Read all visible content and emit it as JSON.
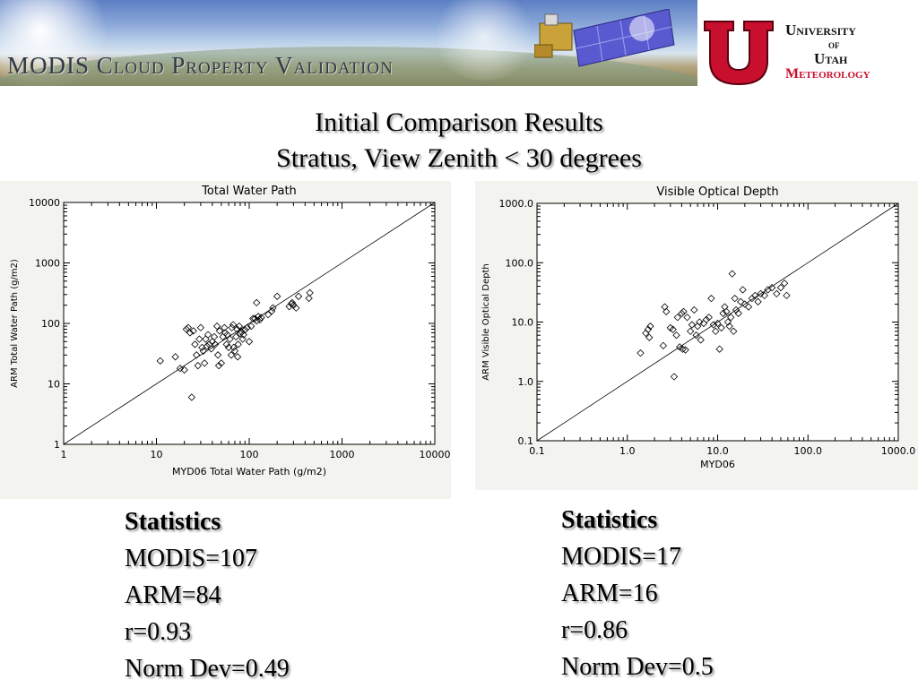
{
  "banner": {
    "title": "MODIS Cloud Property Validation"
  },
  "logo": {
    "line1": "University",
    "line2": "of",
    "line3": "Utah",
    "line4": "Meteorology"
  },
  "slide": {
    "title_line1": "Initial Comparison Results",
    "title_line2": "Stratus, View Zenith < 30 degrees"
  },
  "chart_data": [
    {
      "type": "scatter",
      "title": "Total Water Path",
      "xlabel": "MYD06 Total Water Path (g/m2)",
      "ylabel": "ARM Total Water Path (g/m2)",
      "xscale": "log",
      "yscale": "log",
      "xlim": [
        1,
        10000
      ],
      "ylim": [
        1,
        10000
      ],
      "xticks": [
        "1",
        "10",
        "100",
        "1000",
        "10000"
      ],
      "yticks": [
        "1",
        "10",
        "100",
        "1000",
        "10000"
      ],
      "reference_line": "1:1",
      "marker": "diamond",
      "points": [
        [
          11,
          24
        ],
        [
          16,
          28
        ],
        [
          18,
          18
        ],
        [
          20,
          17
        ],
        [
          21,
          80
        ],
        [
          22,
          85
        ],
        [
          23,
          70
        ],
        [
          24,
          6
        ],
        [
          25,
          75
        ],
        [
          26,
          45
        ],
        [
          27,
          30
        ],
        [
          28,
          20
        ],
        [
          29,
          55
        ],
        [
          30,
          85
        ],
        [
          31,
          40
        ],
        [
          32,
          35
        ],
        [
          33,
          22
        ],
        [
          34,
          55
        ],
        [
          35,
          42
        ],
        [
          36,
          65
        ],
        [
          37,
          45
        ],
        [
          39,
          38
        ],
        [
          40,
          50
        ],
        [
          42,
          60
        ],
        [
          43,
          45
        ],
        [
          45,
          90
        ],
        [
          46,
          30
        ],
        [
          47,
          20
        ],
        [
          48,
          75
        ],
        [
          50,
          22
        ],
        [
          52,
          60
        ],
        [
          54,
          85
        ],
        [
          55,
          70
        ],
        [
          57,
          45
        ],
        [
          58,
          65
        ],
        [
          60,
          40
        ],
        [
          62,
          55
        ],
        [
          64,
          30
        ],
        [
          65,
          85
        ],
        [
          67,
          95
        ],
        [
          68,
          40
        ],
        [
          70,
          35
        ],
        [
          72,
          60
        ],
        [
          74,
          80
        ],
        [
          75,
          28
        ],
        [
          76,
          45
        ],
        [
          78,
          90
        ],
        [
          80,
          68
        ],
        [
          83,
          72
        ],
        [
          85,
          55
        ],
        [
          87,
          65
        ],
        [
          90,
          78
        ],
        [
          95,
          85
        ],
        [
          100,
          50
        ],
        [
          105,
          90
        ],
        [
          110,
          120
        ],
        [
          115,
          120
        ],
        [
          120,
          110
        ],
        [
          125,
          130
        ],
        [
          130,
          115
        ],
        [
          135,
          125
        ],
        [
          120,
          220
        ],
        [
          160,
          140
        ],
        [
          175,
          160
        ],
        [
          180,
          180
        ],
        [
          200,
          280
        ],
        [
          270,
          190
        ],
        [
          285,
          210
        ],
        [
          290,
          220
        ],
        [
          300,
          200
        ],
        [
          320,
          180
        ],
        [
          340,
          280
        ],
        [
          440,
          260
        ],
        [
          450,
          320
        ]
      ]
    },
    {
      "type": "scatter",
      "title": "Visible Optical Depth",
      "xlabel": "MYD06",
      "ylabel": "ARM Visible Optical Depth",
      "xscale": "log",
      "yscale": "log",
      "xlim": [
        0.1,
        1000.0
      ],
      "ylim": [
        0.1,
        1000.0
      ],
      "xticks": [
        "0.1",
        "1.0",
        "10.0",
        "100.0",
        "1000.0"
      ],
      "yticks": [
        "0.1",
        "1.0",
        "10.0",
        "100.0",
        "1000.0"
      ],
      "reference_line": "1:1",
      "marker": "diamond",
      "points": [
        [
          1.4,
          3.0
        ],
        [
          1.6,
          6.5
        ],
        [
          1.7,
          7.5
        ],
        [
          1.75,
          5.5
        ],
        [
          1.8,
          8.5
        ],
        [
          2.5,
          4.0
        ],
        [
          2.6,
          18.0
        ],
        [
          2.7,
          15.0
        ],
        [
          3.0,
          8.0
        ],
        [
          3.2,
          7.5
        ],
        [
          3.3,
          1.2
        ],
        [
          3.5,
          6.0
        ],
        [
          3.6,
          12.0
        ],
        [
          3.8,
          3.8
        ],
        [
          4.0,
          14.0
        ],
        [
          4.1,
          3.5
        ],
        [
          4.2,
          15.0
        ],
        [
          4.4,
          3.4
        ],
        [
          4.6,
          12.0
        ],
        [
          5.0,
          7.0
        ],
        [
          5.2,
          9.0
        ],
        [
          5.5,
          16.0
        ],
        [
          5.8,
          6.0
        ],
        [
          6.0,
          8.5
        ],
        [
          6.3,
          10.0
        ],
        [
          6.5,
          5.0
        ],
        [
          7.0,
          9.5
        ],
        [
          7.5,
          11.0
        ],
        [
          8.0,
          12.0
        ],
        [
          8.5,
          25.0
        ],
        [
          9.0,
          9.0
        ],
        [
          9.5,
          7.0
        ],
        [
          10.0,
          9.5
        ],
        [
          10.5,
          3.5
        ],
        [
          11.0,
          8.0
        ],
        [
          11.5,
          14.0
        ],
        [
          12.0,
          18.0
        ],
        [
          12.5,
          15.0
        ],
        [
          13.0,
          10.0
        ],
        [
          13.5,
          8.5
        ],
        [
          14.0,
          12.0
        ],
        [
          14.5,
          65.0
        ],
        [
          15.0,
          7.0
        ],
        [
          15.5,
          25.0
        ],
        [
          16.0,
          16.0
        ],
        [
          17.0,
          14.0
        ],
        [
          18.0,
          22.0
        ],
        [
          19.0,
          35.0
        ],
        [
          20.0,
          20.0
        ],
        [
          22.0,
          18.0
        ],
        [
          24.0,
          25.0
        ],
        [
          26.0,
          28.0
        ],
        [
          28.0,
          22.0
        ],
        [
          30.0,
          30.0
        ],
        [
          33.0,
          28.0
        ],
        [
          36.0,
          35.0
        ],
        [
          40.0,
          38.0
        ],
        [
          45.0,
          30.0
        ],
        [
          50.0,
          38.0
        ],
        [
          55.0,
          45.0
        ],
        [
          58.0,
          28.0
        ]
      ]
    }
  ],
  "stats_left": {
    "heading": "Statistics",
    "modis": "MODIS=107",
    "arm": "ARM=84",
    "r": "r=0.93",
    "norm_dev": "Norm Dev=0.49"
  },
  "stats_right": {
    "heading": "Statistics",
    "modis": "MODIS=17",
    "arm": "ARM=16",
    "r": "r=0.86",
    "norm_dev": "Norm Dev=0.5"
  }
}
